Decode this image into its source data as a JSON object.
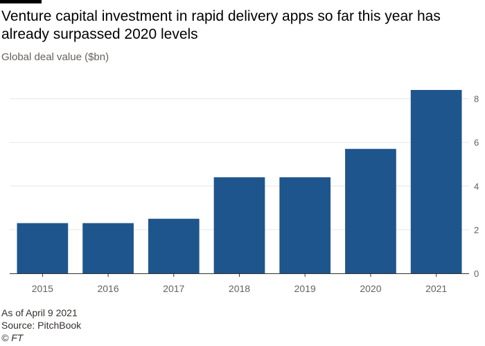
{
  "chart_data": {
    "type": "bar",
    "title": "Venture capital investment in rapid delivery apps so far this year has already surpassed 2020 levels",
    "subtitle": "Global deal value ($bn)",
    "categories": [
      "2015",
      "2016",
      "2017",
      "2018",
      "2019",
      "2020",
      "2021"
    ],
    "values": [
      2.3,
      2.3,
      2.5,
      4.4,
      4.4,
      5.7,
      8.4
    ],
    "ylim": [
      0,
      8.4
    ],
    "yticks": [
      0,
      2,
      4,
      6,
      8
    ],
    "y_axis_side": "right",
    "grid": true,
    "bar_color": "#1e558c",
    "grid_color": "#e6e6e6"
  },
  "footer": {
    "note": "As of April 9 2021",
    "source": "Source: PitchBook",
    "credit": "© FT"
  }
}
